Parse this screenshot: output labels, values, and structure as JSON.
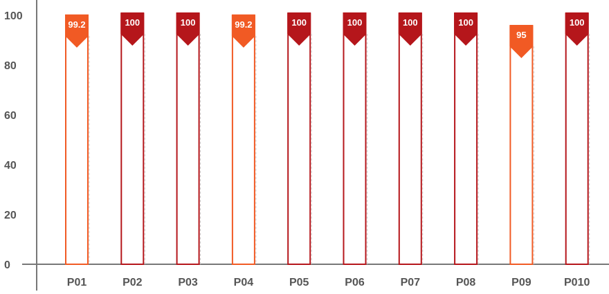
{
  "chart_data": {
    "type": "bar",
    "title": "",
    "xlabel": "",
    "ylabel": "",
    "categories": [
      "P01",
      "P02",
      "P03",
      "P04",
      "P05",
      "P06",
      "P07",
      "P08",
      "P09",
      "P010"
    ],
    "values": [
      99.2,
      100,
      100,
      99.2,
      100,
      100,
      100,
      100,
      95,
      100
    ],
    "data_labels": [
      "99.2",
      "100",
      "100",
      "99.2",
      "100",
      "100",
      "100",
      "100",
      "95",
      "100"
    ],
    "ylim": [
      0,
      100
    ],
    "yticks": [
      "0",
      "20",
      "40",
      "60",
      "80",
      "100"
    ],
    "grid": false,
    "legend": "none",
    "colors": {
      "full": "#b5161b",
      "partial": "#f15a24",
      "axis": "#777777",
      "text": "#555555"
    }
  }
}
